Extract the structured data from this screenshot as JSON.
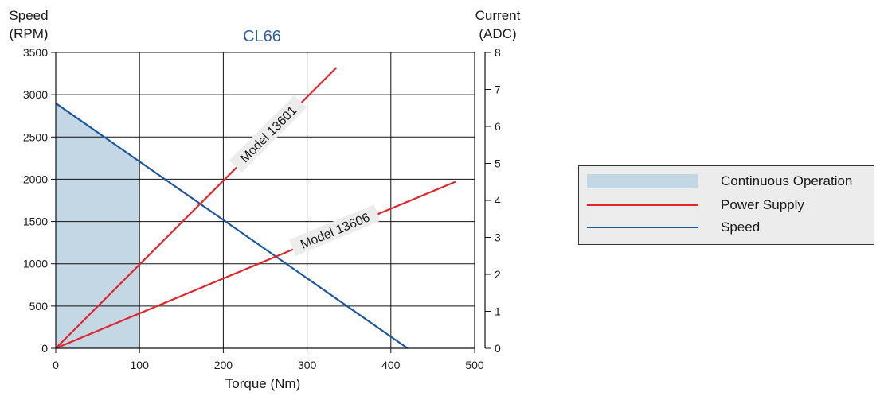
{
  "chart_data": {
    "type": "line",
    "title": "CL66",
    "xlabel": "Torque (Nm)",
    "ylabel_left": [
      "Speed",
      "(RPM)"
    ],
    "ylabel_right": [
      "Current",
      "(ADC)"
    ],
    "xlim": [
      0,
      500
    ],
    "ylim_left": [
      0,
      3500
    ],
    "ylim_right": [
      0,
      8
    ],
    "x_ticks": [
      0,
      100,
      200,
      300,
      400,
      500
    ],
    "y_left_ticks": [
      0,
      500,
      1000,
      1500,
      2000,
      2500,
      3000,
      3500
    ],
    "y_right_ticks": [
      0,
      1,
      2,
      3,
      4,
      5,
      6,
      7,
      8
    ],
    "grid": true,
    "legend_position": "right",
    "colors": {
      "speed": "#1b57a0",
      "power": "#e0262b",
      "continuous": "#c3d7e5",
      "title": "#2b5fa8"
    },
    "series": [
      {
        "name": "Speed",
        "axis": "left",
        "x": [
          0,
          420
        ],
        "y": [
          2900,
          0
        ]
      },
      {
        "label": "Model 13601",
        "axis": "left",
        "x": [
          0,
          335
        ],
        "y": [
          0,
          3320
        ]
      },
      {
        "label": "Model 13606",
        "axis": "left",
        "x": [
          0,
          477
        ],
        "y": [
          0,
          1970
        ]
      }
    ],
    "continuous_region": {
      "x": [
        0,
        100
      ],
      "y_left": [
        0,
        2900
      ],
      "y_at_x_end": 2200
    },
    "legend": [
      {
        "label": "Continuous Operation",
        "kind": "area",
        "color": "#c3d7e5"
      },
      {
        "label": "Power Supply",
        "kind": "line",
        "color": "#e0262b"
      },
      {
        "label": "Speed",
        "kind": "line",
        "color": "#1b57a0"
      }
    ]
  }
}
